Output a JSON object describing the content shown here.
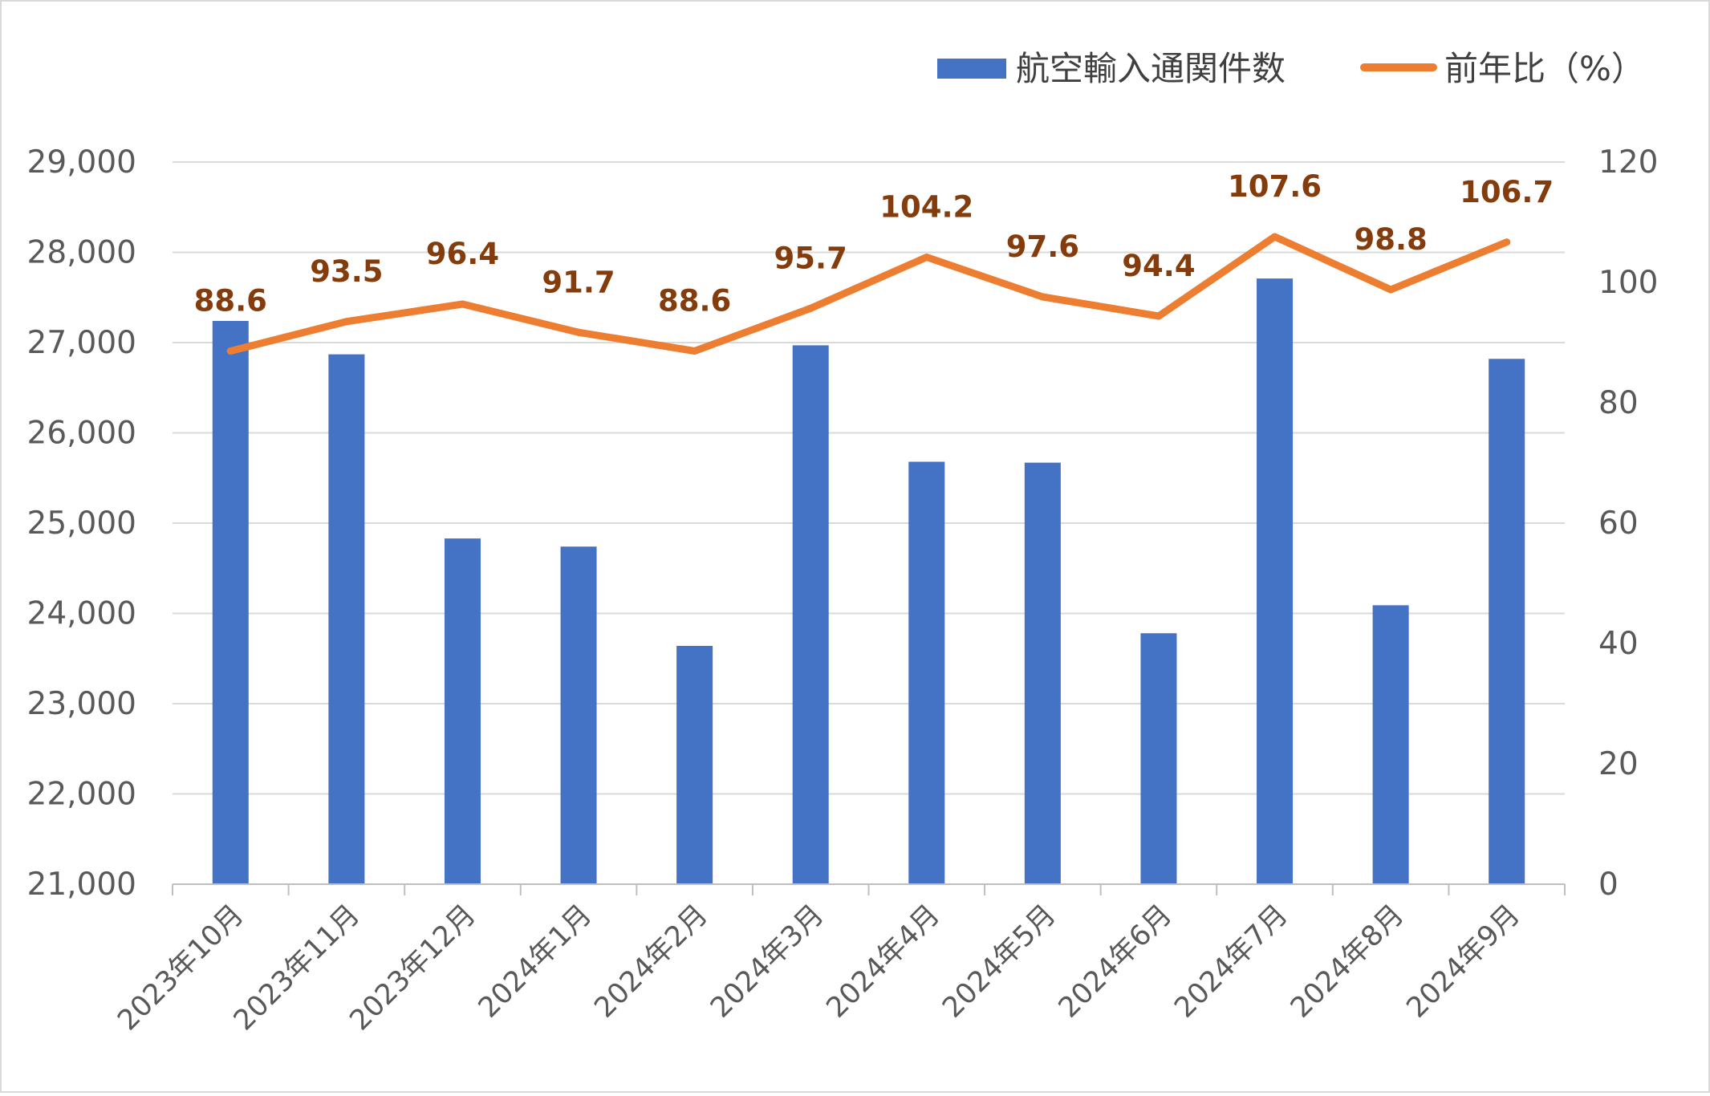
{
  "chart_data": {
    "type": "bar+line",
    "categories": [
      "2023年10月",
      "2023年11月",
      "2023年12月",
      "2024年1月",
      "2024年2月",
      "2024年3月",
      "2024年4月",
      "2024年5月",
      "2024年6月",
      "2024年7月",
      "2024年8月",
      "2024年9月"
    ],
    "series": [
      {
        "name": "航空輸入通関件数",
        "type": "bar",
        "axis": "left",
        "color": "#4472c4",
        "values": [
          27240,
          26870,
          24830,
          24740,
          23640,
          26970,
          25680,
          25670,
          23780,
          27710,
          24090,
          26820
        ]
      },
      {
        "name": "前年比（%）",
        "type": "line",
        "axis": "right",
        "color": "#ed7d31",
        "values": [
          88.6,
          93.5,
          96.4,
          91.7,
          88.6,
          95.7,
          104.2,
          97.6,
          94.4,
          107.6,
          98.8,
          106.7
        ],
        "labels": [
          "88.6",
          "93.5",
          "96.4",
          "91.7",
          "88.6",
          "95.7",
          "104.2",
          "97.6",
          "94.4",
          "107.6",
          "98.8",
          "106.7"
        ]
      }
    ],
    "y_left": {
      "min": 21000,
      "max": 29000,
      "step": 1000,
      "ticks": [
        "21,000",
        "22,000",
        "23,000",
        "24,000",
        "25,000",
        "26,000",
        "27,000",
        "28,000",
        "29,000"
      ]
    },
    "y_right": {
      "min": 0,
      "max": 120,
      "step": 20,
      "ticks": [
        "0",
        "20",
        "40",
        "60",
        "80",
        "100",
        "120"
      ]
    },
    "grid": true,
    "legend_position": "top-right",
    "label_color": "#843c0c"
  }
}
